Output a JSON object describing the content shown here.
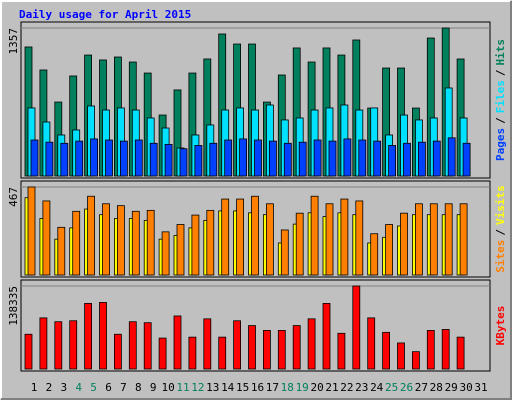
{
  "title": "Daily usage for April 2015",
  "chart_data": [
    {
      "type": "bar",
      "ylim": [
        0,
        1357
      ],
      "yticks": [
        1357
      ],
      "legend_separator": "/",
      "series": [
        {
          "name": "Hits",
          "color": "#00805c",
          "values": [
            1183,
            972,
            678,
            917,
            1109,
            1064,
            1091,
            1045,
            944,
            559,
            789,
            944,
            1073,
            1302,
            1210,
            1210,
            678,
            926,
            1174,
            1045,
            1174,
            1109,
            1247,
            623,
            990,
            990,
            623,
            1265,
            1357,
            1073,
            null
          ]
        },
        {
          "name": "Files",
          "color": "#00e0ff",
          "values": [
            624,
            495,
            376,
            422,
            642,
            605,
            624,
            605,
            532,
            440,
            257,
            376,
            468,
            605,
            624,
            605,
            651,
            514,
            532,
            605,
            624,
            651,
            605,
            624,
            376,
            559,
            514,
            532,
            807,
            532,
            null
          ]
        },
        {
          "name": "Pages",
          "color": "#0040ff",
          "values": [
            330,
            310,
            300,
            320,
            340,
            330,
            320,
            330,
            300,
            290,
            250,
            280,
            300,
            330,
            340,
            330,
            320,
            300,
            310,
            330,
            320,
            340,
            330,
            320,
            280,
            300,
            310,
            320,
            350,
            300,
            null
          ]
        }
      ]
    },
    {
      "type": "bar",
      "ylim": [
        0,
        467
      ],
      "yticks": [
        467
      ],
      "legend_separator": "/",
      "series": [
        {
          "name": "Visits",
          "color": "#ffff00",
          "values": [
            410,
            300,
            190,
            250,
            350,
            320,
            300,
            300,
            290,
            190,
            210,
            250,
            290,
            340,
            340,
            330,
            320,
            170,
            270,
            330,
            310,
            330,
            320,
            170,
            200,
            260,
            320,
            320,
            320,
            320,
            null
          ]
        },
        {
          "name": "Sites",
          "color": "#ff8000",
          "values": [
            467,
            393,
            253,
            338,
            418,
            378,
            368,
            338,
            343,
            229,
            268,
            318,
            343,
            403,
            403,
            418,
            378,
            239,
            328,
            418,
            378,
            403,
            393,
            219,
            268,
            328,
            378,
            378,
            378,
            378,
            null
          ]
        }
      ]
    },
    {
      "type": "bar",
      "ylim": [
        0,
        138335
      ],
      "yticks": [
        138335
      ],
      "weekend_color": "#00805c",
      "weekend_days": [
        4,
        5,
        11,
        12,
        18,
        19,
        25,
        26
      ],
      "categories": [
        1,
        2,
        3,
        4,
        5,
        6,
        7,
        8,
        9,
        10,
        11,
        12,
        13,
        14,
        15,
        16,
        17,
        18,
        19,
        20,
        21,
        22,
        23,
        24,
        25,
        26,
        27,
        28,
        29,
        30,
        31
      ],
      "series": [
        {
          "name": "KBytes",
          "color": "#ff0000",
          "values": [
            57900,
            85200,
            78800,
            80400,
            109300,
            111000,
            57900,
            78800,
            77200,
            51500,
            88400,
            53100,
            83600,
            53100,
            80400,
            72400,
            64300,
            64300,
            72400,
            83600,
            109300,
            59500,
            138335,
            85200,
            61100,
            43400,
            28900,
            64300,
            65900,
            53100,
            null
          ]
        }
      ]
    }
  ]
}
